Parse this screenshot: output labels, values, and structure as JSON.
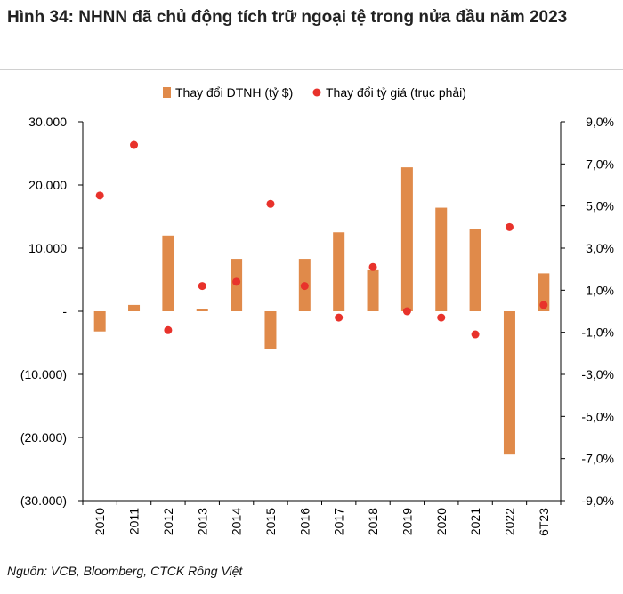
{
  "title": "Hình 34: NHNN đã chủ động tích trữ ngoại tệ trong nửa đầu năm 2023",
  "source": "Nguồn: VCB, Bloomberg, CTCK Rồng Việt",
  "colors": {
    "bar": "#e08a4a",
    "dot": "#e8322b",
    "axis": "#000000"
  },
  "chart_data": {
    "type": "bar",
    "categories": [
      "2010",
      "2011",
      "2012",
      "2013",
      "2014",
      "2015",
      "2016",
      "2017",
      "2018",
      "2019",
      "2020",
      "2021",
      "2022",
      "6T23"
    ],
    "series": [
      {
        "name": "Thay đổi DTNH (tỷ $)",
        "type": "bar",
        "axis": "left",
        "values": [
          -3200,
          1000,
          12000,
          300,
          8300,
          -6000,
          8300,
          12500,
          6500,
          22800,
          16400,
          13000,
          -22700,
          6000
        ]
      },
      {
        "name": "Thay đổi tỷ giá (trục phải)",
        "type": "scatter",
        "axis": "right",
        "values": [
          5.5,
          7.9,
          -0.9,
          1.2,
          1.4,
          5.1,
          1.2,
          -0.3,
          2.1,
          0.0,
          -0.3,
          -1.1,
          4.0,
          0.3
        ]
      }
    ],
    "ylim_left": [
      -30000,
      30000
    ],
    "ylim_right": [
      -9.0,
      9.0
    ],
    "yticks_left": [
      "30.000",
      "20.000",
      "10.000",
      "-",
      "(10.000)",
      "(20.000)",
      "(30.000)"
    ],
    "yticks_right": [
      "9,0%",
      "7,0%",
      "5,0%",
      "3,0%",
      "1,0%",
      "-1,0%",
      "-3,0%",
      "-5,0%",
      "-7,0%",
      "-9,0%"
    ],
    "legend_position": "top-center"
  }
}
